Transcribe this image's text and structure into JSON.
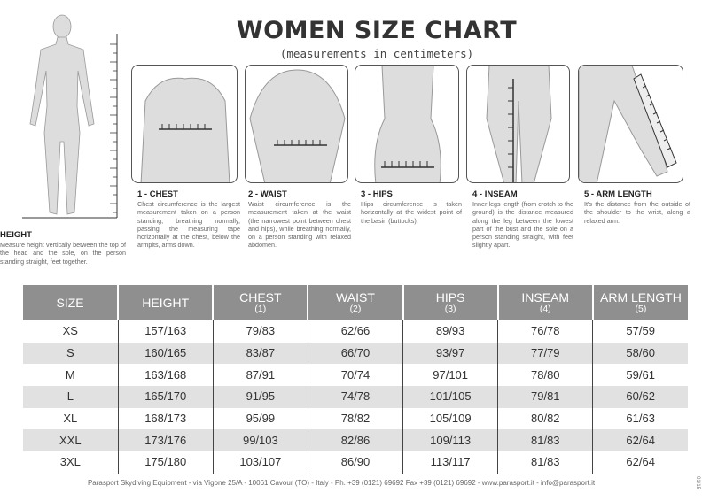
{
  "title": "WOMEN SIZE CHART",
  "subtitle": "(measurements in centimeters)",
  "measures": [
    {
      "label": "HEIGHT",
      "text": "Measure height vertically between the top of the head and the sole, on the person standing straight, feet together."
    },
    {
      "label": "1 - CHEST",
      "text": "Chest circumference is the largest measurement taken on a person standing, breathing normally, passing the measuring tape horizontally at the chest, below the armpits, arms down."
    },
    {
      "label": "2 - WAIST",
      "text": "Waist circumference is the measurement taken at the waist (the narrowest point between chest and hips), while breathing normally, on a person standing with relaxed abdomen."
    },
    {
      "label": "3 - HIPS",
      "text": "Hips circumference is taken horizontally at the widest point of the basin (buttocks)."
    },
    {
      "label": "4 - INSEAM",
      "text": "Inner legs length (from crotch to the ground) is the distance measured along the leg between the lowest part of the bust and the sole on a person standing straight, with feet slightly apart."
    },
    {
      "label": "5 - ARM LENGTH",
      "text": "It's the distance from the outside of the shoulder to the wrist, along a relaxed arm."
    }
  ],
  "table": {
    "headers": [
      {
        "label": "SIZE",
        "num": ""
      },
      {
        "label": "HEIGHT",
        "num": ""
      },
      {
        "label": "CHEST",
        "num": "(1)"
      },
      {
        "label": "WAIST",
        "num": "(2)"
      },
      {
        "label": "HIPS",
        "num": "(3)"
      },
      {
        "label": "INSEAM",
        "num": "(4)"
      },
      {
        "label": "ARM LENGTH",
        "num": "(5)"
      }
    ],
    "rows": [
      [
        "XS",
        "157/163",
        "79/83",
        "62/66",
        "89/93",
        "76/78",
        "57/59"
      ],
      [
        "S",
        "160/165",
        "83/87",
        "66/70",
        "93/97",
        "77/79",
        "58/60"
      ],
      [
        "M",
        "163/168",
        "87/91",
        "70/74",
        "97/101",
        "78/80",
        "59/61"
      ],
      [
        "L",
        "165/170",
        "91/95",
        "74/78",
        "101/105",
        "79/81",
        "60/62"
      ],
      [
        "XL",
        "168/173",
        "95/99",
        "78/82",
        "105/109",
        "80/82",
        "61/63"
      ],
      [
        "XXL",
        "173/176",
        "99/103",
        "82/86",
        "109/113",
        "81/83",
        "62/64"
      ],
      [
        "3XL",
        "175/180",
        "103/107",
        "86/90",
        "113/117",
        "81/83",
        "62/64"
      ]
    ]
  },
  "footer": "Parasport Skydiving Equipment - via Vigone 25/A - 10061 Cavour (TO) - Italy - Ph. +39 (0121) 69692 Fax +39 (0121) 69692 - www.parasport.it - info@parasport.it",
  "code": "01/15"
}
